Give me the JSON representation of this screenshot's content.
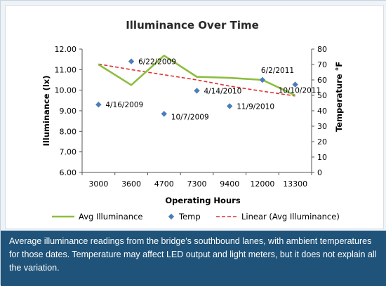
{
  "caption": "Average illuminance readings from the bridge's southbound lanes, with ambient temperatures for those dates.  Temperature may affect LED output and light meters, but it does not explain all the variation.",
  "colors": {
    "illuminance": "#8cbe3f",
    "temp": "#4a7ebb",
    "trend": "#e03030",
    "caption_bg": "#1f5379"
  },
  "chart_data": {
    "type": "line",
    "title": "Illuminance Over Time",
    "xlabel": "Operating Hours",
    "ylabel": "Illuminance (lx)",
    "y2label": "Temperature °F",
    "categories": [
      "3000",
      "3600",
      "4700",
      "7300",
      "9400",
      "12000",
      "13300"
    ],
    "ylim": [
      6.0,
      12.0
    ],
    "y2lim": [
      0,
      80
    ],
    "yticks": [
      "6.00",
      "7.00",
      "8.00",
      "9.00",
      "10.00",
      "11.00",
      "12.00"
    ],
    "y2ticks": [
      "0",
      "10",
      "20",
      "30",
      "40",
      "50",
      "60",
      "70",
      "80"
    ],
    "series": [
      {
        "name": "Avg Illuminance",
        "kind": "line",
        "axis": "left",
        "values": [
          11.25,
          10.25,
          11.68,
          10.65,
          10.6,
          10.5,
          9.75
        ]
      },
      {
        "name": "Temp",
        "kind": "scatter",
        "axis": "right",
        "values": [
          44,
          72,
          38,
          53,
          43,
          60,
          57
        ],
        "labels": [
          "4/16/2009",
          "6/22/2009",
          "10/7/2009",
          "4/14/2010",
          "11/9/2010",
          "6/2/2011",
          "10/10/2011"
        ]
      },
      {
        "name": "Linear (Avg Illuminance)",
        "kind": "trendline",
        "axis": "left",
        "values": [
          11.27,
          11.0,
          10.75,
          10.5,
          10.2,
          9.95,
          9.72
        ]
      }
    ],
    "legend_position": "bottom",
    "grid": false
  }
}
